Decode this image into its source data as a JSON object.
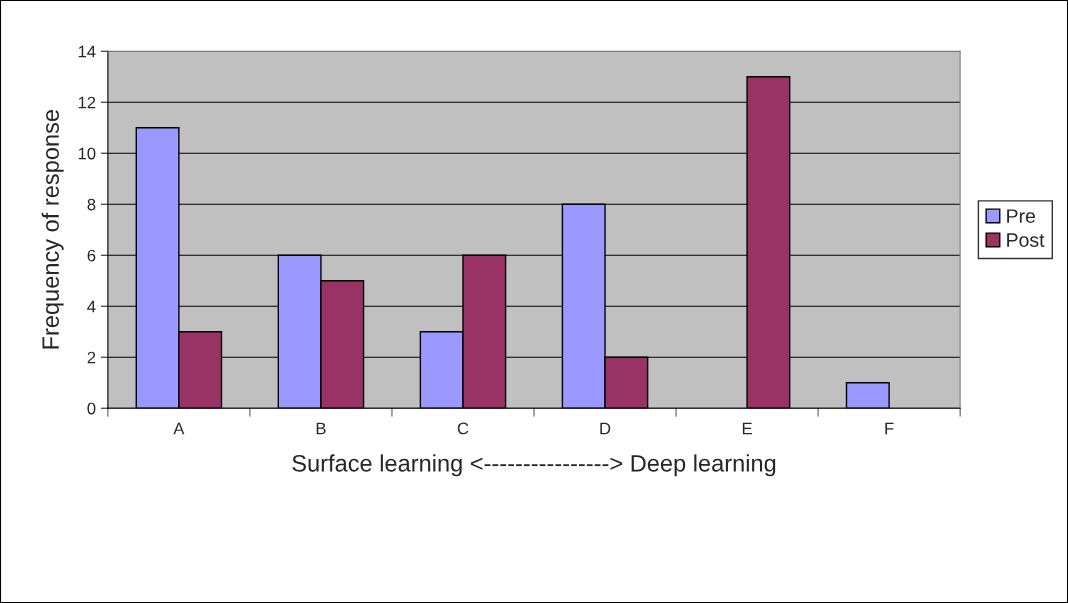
{
  "chart_data": {
    "type": "bar",
    "xlabel": "Surface learning <----------------> Deep learning",
    "ylabel": "Frequency of response",
    "categories": [
      "A",
      "B",
      "C",
      "D",
      "E",
      "F"
    ],
    "series": [
      {
        "name": "Pre",
        "color": "#9999ff",
        "values": [
          11,
          6,
          3,
          8,
          0,
          1
        ]
      },
      {
        "name": "Post",
        "color": "#993366",
        "values": [
          3,
          5,
          6,
          2,
          13,
          0
        ]
      }
    ],
    "ylim": [
      0,
      14
    ],
    "yticks": [
      0,
      2,
      4,
      6,
      8,
      10,
      12,
      14
    ],
    "grid": "y",
    "legend": "right"
  }
}
